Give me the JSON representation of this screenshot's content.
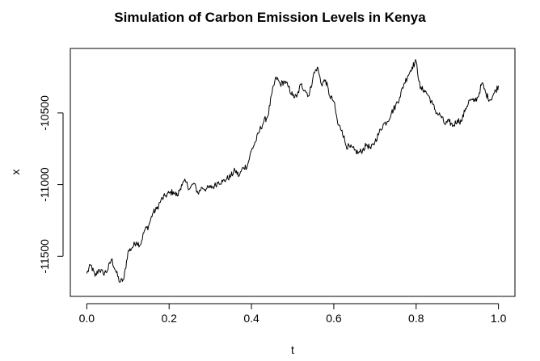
{
  "chart_data": {
    "type": "line",
    "title": "Simulation of Carbon Emission Levels in Kenya",
    "xlabel": "t",
    "ylabel": "x",
    "xlim": [
      0.0,
      1.0
    ],
    "ylim": [
      -11780,
      -10050
    ],
    "x_ticks": [
      0.0,
      0.2,
      0.4,
      0.6,
      0.8,
      1.0
    ],
    "x_tick_labels": [
      "0.0",
      "0.2",
      "0.4",
      "0.6",
      "0.8",
      "1.0"
    ],
    "y_ticks": [
      -10500,
      -11000,
      -11500
    ],
    "y_tick_labels": [
      "-10500",
      "-11000",
      "-11500"
    ],
    "grid": false,
    "legend": "none",
    "line_color": "#000000",
    "series": [
      {
        "x": [
          0.0,
          0.01,
          0.02,
          0.03,
          0.04,
          0.05,
          0.06,
          0.07,
          0.08,
          0.09,
          0.1,
          0.11,
          0.12,
          0.13,
          0.14,
          0.15,
          0.16,
          0.17,
          0.18,
          0.19,
          0.2,
          0.21,
          0.22,
          0.23,
          0.24,
          0.25,
          0.26,
          0.27,
          0.28,
          0.29,
          0.3,
          0.31,
          0.32,
          0.33,
          0.34,
          0.35,
          0.36,
          0.37,
          0.38,
          0.39,
          0.4,
          0.41,
          0.42,
          0.43,
          0.44,
          0.45,
          0.46,
          0.47,
          0.48,
          0.49,
          0.5,
          0.51,
          0.52,
          0.53,
          0.54,
          0.55,
          0.56,
          0.57,
          0.58,
          0.59,
          0.6,
          0.61,
          0.62,
          0.63,
          0.64,
          0.65,
          0.66,
          0.67,
          0.68,
          0.69,
          0.7,
          0.71,
          0.72,
          0.73,
          0.74,
          0.75,
          0.76,
          0.77,
          0.78,
          0.79,
          0.8,
          0.81,
          0.82,
          0.83,
          0.84,
          0.85,
          0.86,
          0.87,
          0.88,
          0.89,
          0.9,
          0.91,
          0.92,
          0.93,
          0.94,
          0.95,
          0.96,
          0.97,
          0.98,
          0.99,
          1.0
        ],
        "y": [
          -11620,
          -11560,
          -11640,
          -11590,
          -11620,
          -11600,
          -11520,
          -11600,
          -11680,
          -11660,
          -11470,
          -11440,
          -11400,
          -11420,
          -11320,
          -11290,
          -11200,
          -11170,
          -11110,
          -11080,
          -11060,
          -11050,
          -11080,
          -11000,
          -10980,
          -11030,
          -10990,
          -11060,
          -11020,
          -11030,
          -11020,
          -11010,
          -10980,
          -10980,
          -10960,
          -10940,
          -10900,
          -10940,
          -10880,
          -10870,
          -10760,
          -10700,
          -10620,
          -10560,
          -10520,
          -10360,
          -10250,
          -10300,
          -10280,
          -10320,
          -10380,
          -10390,
          -10300,
          -10340,
          -10380,
          -10240,
          -10180,
          -10300,
          -10270,
          -10380,
          -10420,
          -10580,
          -10620,
          -10730,
          -10740,
          -10760,
          -10780,
          -10760,
          -10720,
          -10750,
          -10700,
          -10640,
          -10580,
          -10560,
          -10500,
          -10450,
          -10390,
          -10300,
          -10240,
          -10180,
          -10140,
          -10330,
          -10340,
          -10380,
          -10440,
          -10500,
          -10520,
          -10580,
          -10560,
          -10590,
          -10550,
          -10560,
          -10470,
          -10410,
          -10420,
          -10390,
          -10290,
          -10370,
          -10410,
          -10360,
          -10310
        ]
      }
    ]
  }
}
